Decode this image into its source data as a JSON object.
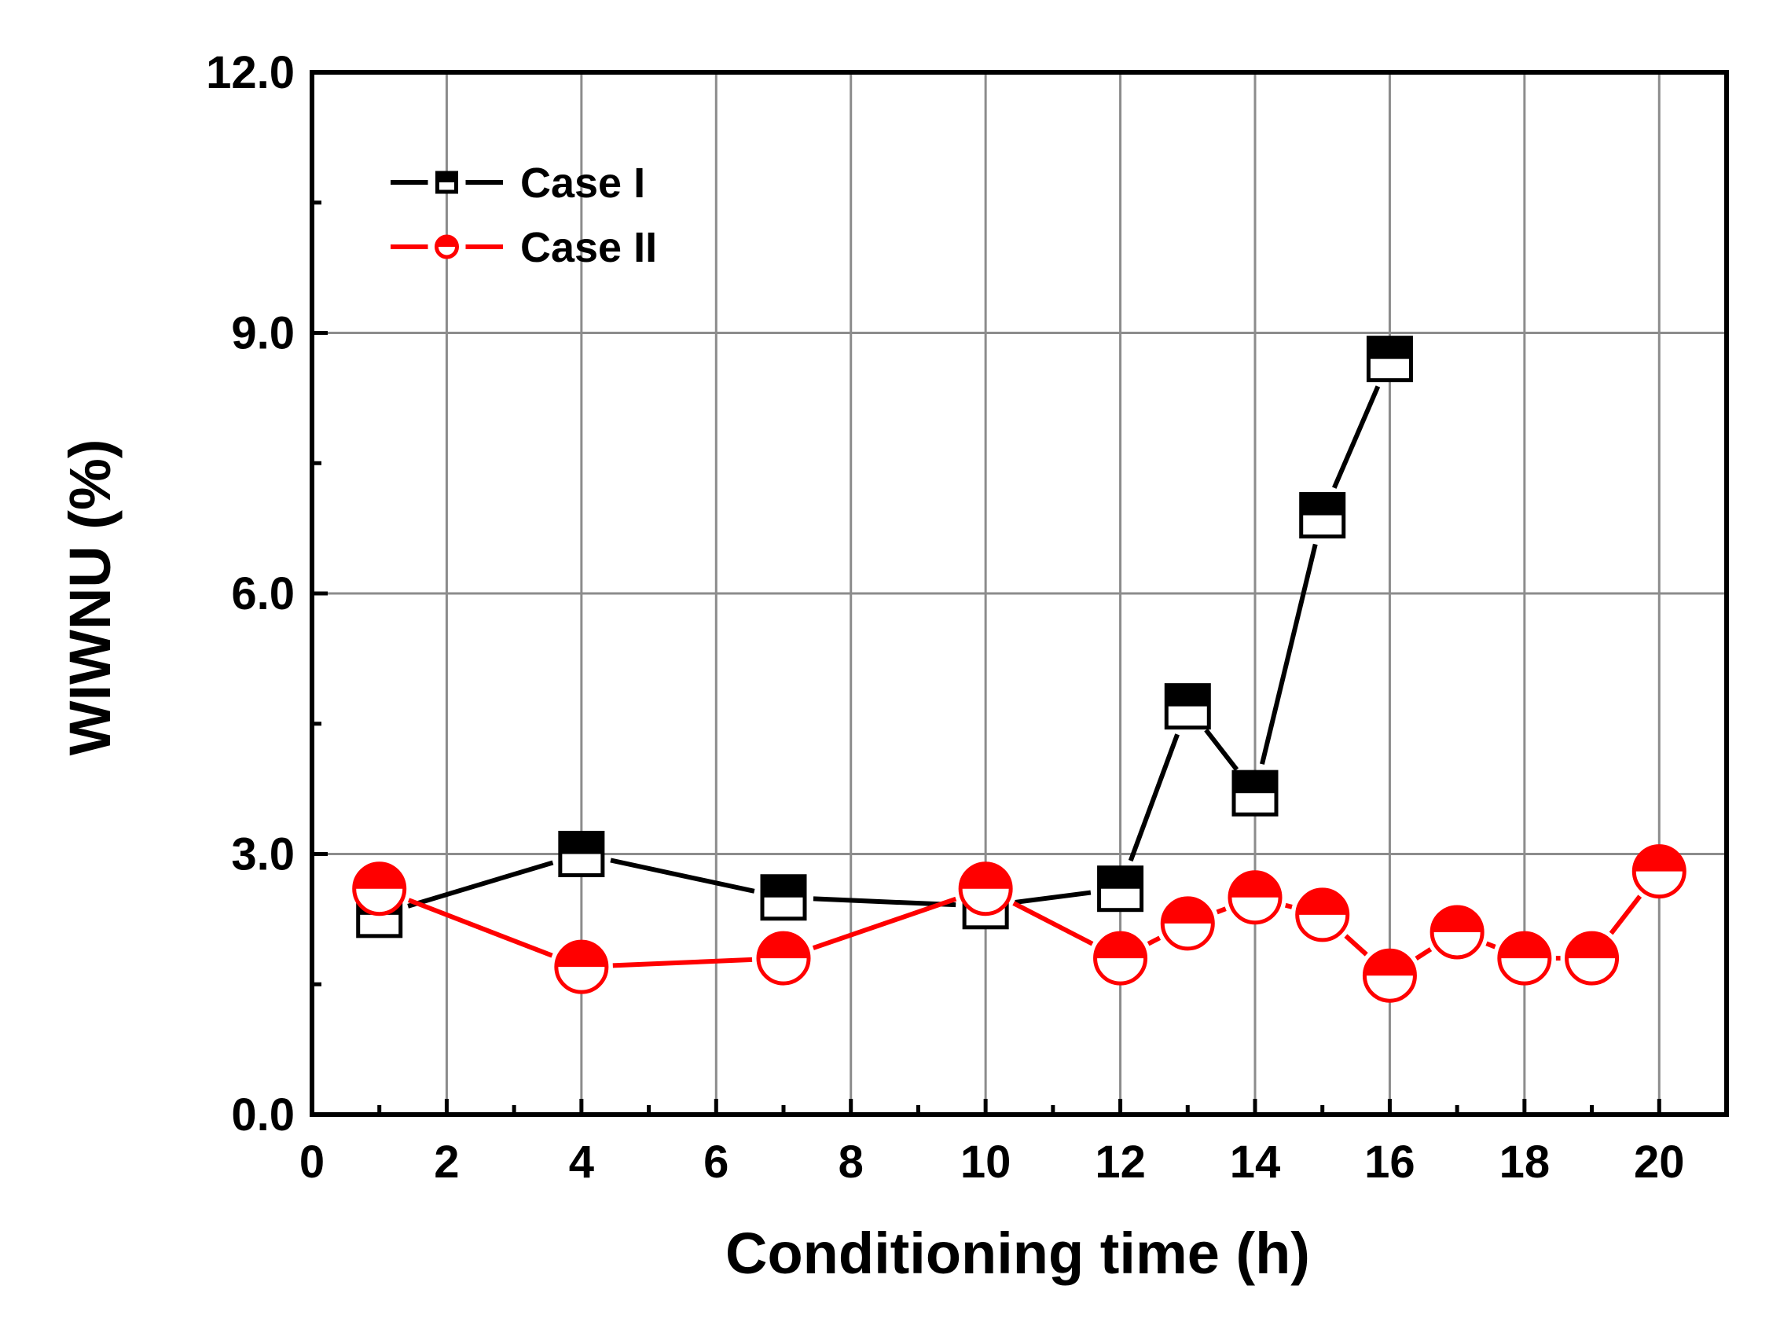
{
  "chart_data": {
    "type": "line",
    "title": "",
    "xlabel": "Conditioning time (h)",
    "ylabel": "WIWNU (%)",
    "xlim": [
      0,
      21
    ],
    "ylim": [
      0,
      12
    ],
    "xticks": [
      0,
      2,
      4,
      6,
      8,
      10,
      12,
      14,
      16,
      18,
      20
    ],
    "xtick_labels": [
      "0",
      "2",
      "4",
      "6",
      "8",
      "10",
      "12",
      "14",
      "16",
      "18",
      "20"
    ],
    "yticks": [
      0,
      3,
      6,
      9,
      12
    ],
    "ytick_labels": [
      "0.0",
      "3.0",
      "6.0",
      "9.0",
      "12.0"
    ],
    "grid": true,
    "legend_position": "top-left",
    "series": [
      {
        "name": "Case I",
        "color": "#000000",
        "marker": "half-filled-square",
        "x": [
          1,
          4,
          7,
          10,
          12,
          13,
          14,
          15,
          16
        ],
        "y": [
          2.3,
          3.0,
          2.5,
          2.4,
          2.6,
          4.7,
          3.7,
          6.9,
          8.7
        ]
      },
      {
        "name": "Case II",
        "color": "#ff0000",
        "marker": "half-filled-circle",
        "x": [
          1,
          4,
          7,
          10,
          12,
          13,
          14,
          15,
          16,
          17,
          18,
          19,
          20
        ],
        "y": [
          2.6,
          1.7,
          1.8,
          2.6,
          1.8,
          2.2,
          2.5,
          2.3,
          1.6,
          2.1,
          1.8,
          1.8,
          2.8
        ]
      }
    ]
  }
}
